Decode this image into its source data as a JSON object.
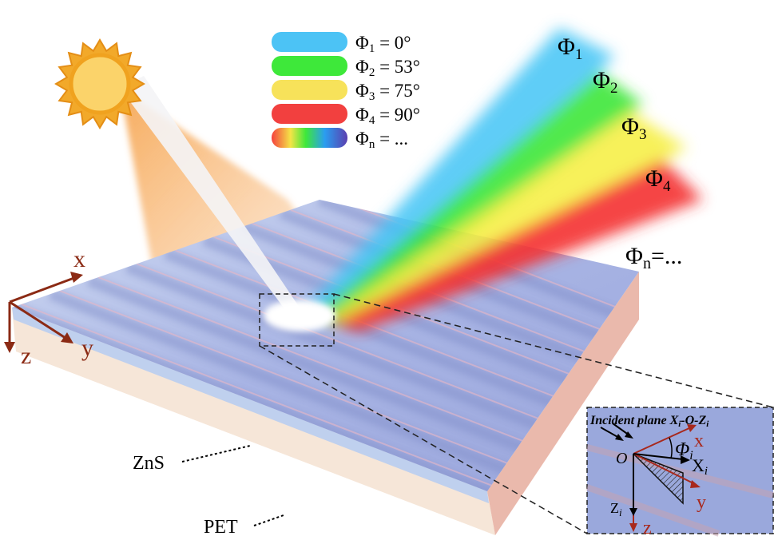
{
  "legend": [
    {
      "symbol": "Φ",
      "subscript": "1",
      "text": " = 0°",
      "color": "#4cc3f5"
    },
    {
      "symbol": "Φ",
      "subscript": "2",
      "text": " = 53°",
      "color": "#3ee83a"
    },
    {
      "symbol": "Φ",
      "subscript": "3",
      "text": " = 75°",
      "color": "#f7e25a"
    },
    {
      "symbol": "Φ",
      "subscript": "4",
      "text": " = 90°",
      "color": "#f2403f"
    },
    {
      "symbol": "Φ",
      "subscript": "n",
      "text": " = ...",
      "color": "rainbow"
    }
  ],
  "beams": [
    {
      "symbol": "Φ",
      "subscript": "1"
    },
    {
      "symbol": "Φ",
      "subscript": "2"
    },
    {
      "symbol": "Φ",
      "subscript": "3"
    },
    {
      "symbol": "Φ",
      "subscript": "4"
    }
  ],
  "beam_note": {
    "symbol": "Φ",
    "subscript": "n",
    "text": "=..."
  },
  "axes": {
    "x": "x",
    "y": "y",
    "z": "z"
  },
  "layers": {
    "top": "ZnS",
    "bottom": "PET"
  },
  "inset": {
    "title": [
      "Incident plane X",
      "i",
      "-O-Z",
      "i"
    ],
    "origin": "O",
    "x": "x",
    "y": "y",
    "z": "z",
    "angle": {
      "symbol": "Φ",
      "subscript": "i"
    },
    "xi": {
      "symbol": "X",
      "subscript": "i"
    },
    "zi": {
      "symbol": "Z",
      "subscript": "i"
    }
  }
}
